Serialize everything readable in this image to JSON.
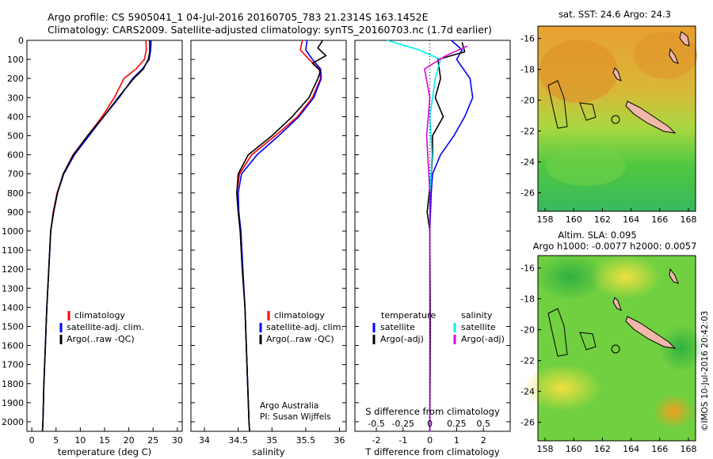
{
  "header": {
    "line1": "Argo profile: CS 5905041_1 04-Jul-2016 20160705_783 21.2314S 163.1452E",
    "line2": "Climatology: CARS2009. Satellite-adjusted climatology: synTS_20160703.nc (1.7d earlier)"
  },
  "colors": {
    "climatology": "#ff0000",
    "satellite": "#0000ff",
    "argo": "#000000",
    "sal_sat": "#00eeee",
    "sal_argo": "#dd00dd",
    "land": "#f0b8a8"
  },
  "chart_data": [
    {
      "type": "line",
      "id": "temperature",
      "xlabel": "temperature (deg C)",
      "xlim": [
        -1,
        31
      ],
      "ylim": [
        2050,
        0
      ],
      "xticks": [
        "0",
        "5",
        "10",
        "15",
        "20",
        "25",
        "30"
      ],
      "yticks": [
        "0",
        "100",
        "200",
        "300",
        "400",
        "500",
        "600",
        "700",
        "800",
        "900",
        "1000",
        "1100",
        "1200",
        "1300",
        "1400",
        "1500",
        "1600",
        "1700",
        "1800",
        "1900",
        "2000"
      ],
      "legend": [
        "climatology",
        "satellite-adj. clim.",
        "Argo(..raw -QC)"
      ],
      "series": [
        {
          "name": "climatology",
          "pts": [
            [
              23.5,
              0
            ],
            [
              23.6,
              50
            ],
            [
              23.2,
              100
            ],
            [
              21.5,
              150
            ],
            [
              19.0,
              200
            ],
            [
              17.0,
              300
            ],
            [
              14.5,
              400
            ],
            [
              11.5,
              500
            ],
            [
              8.5,
              600
            ],
            [
              6.5,
              700
            ],
            [
              5.2,
              800
            ],
            [
              4.4,
              900
            ],
            [
              3.9,
              1000
            ],
            [
              3.5,
              1200
            ],
            [
              3.1,
              1400
            ],
            [
              2.8,
              1600
            ],
            [
              2.5,
              1800
            ],
            [
              2.3,
              2000
            ],
            [
              2.2,
              2050
            ]
          ]
        },
        {
          "name": "satellite",
          "pts": [
            [
              24.6,
              0
            ],
            [
              24.5,
              50
            ],
            [
              24.2,
              100
            ],
            [
              22.8,
              150
            ],
            [
              20.8,
              200
            ],
            [
              18.0,
              300
            ],
            [
              14.8,
              400
            ],
            [
              11.8,
              500
            ],
            [
              8.8,
              600
            ],
            [
              6.6,
              700
            ],
            [
              5.3,
              800
            ],
            [
              4.5,
              900
            ],
            [
              3.9,
              1000
            ],
            [
              3.5,
              1200
            ],
            [
              3.1,
              1400
            ],
            [
              2.8,
              1600
            ],
            [
              2.5,
              1800
            ],
            [
              2.3,
              2000
            ],
            [
              2.2,
              2050
            ]
          ]
        },
        {
          "name": "argo",
          "pts": [
            [
              24.3,
              0
            ],
            [
              24.3,
              60
            ],
            [
              24.0,
              100
            ],
            [
              23.0,
              150
            ],
            [
              21.0,
              200
            ],
            [
              17.8,
              300
            ],
            [
              14.8,
              400
            ],
            [
              11.5,
              500
            ],
            [
              8.6,
              600
            ],
            [
              6.5,
              700
            ],
            [
              5.3,
              800
            ],
            [
              4.5,
              900
            ],
            [
              3.9,
              1000
            ],
            [
              3.5,
              1200
            ],
            [
              3.1,
              1400
            ],
            [
              2.8,
              1600
            ],
            [
              2.5,
              1800
            ],
            [
              2.3,
              2000
            ],
            [
              2.2,
              2050
            ]
          ]
        }
      ]
    },
    {
      "type": "line",
      "id": "salinity",
      "xlabel": "salinity",
      "xlim": [
        33.8,
        36.1
      ],
      "ylim": [
        2050,
        0
      ],
      "xticks": [
        "34",
        "34.5",
        "35",
        "35.5",
        "36"
      ],
      "legend": [
        "climatology",
        "satellite-adj. clim.",
        "Argo(..raw -QC)"
      ],
      "annotation": [
        "Argo Australia",
        "PI: Susan Wijffels"
      ],
      "series": [
        {
          "name": "climatology",
          "pts": [
            [
              35.45,
              0
            ],
            [
              35.42,
              50
            ],
            [
              35.55,
              100
            ],
            [
              35.7,
              150
            ],
            [
              35.72,
              200
            ],
            [
              35.6,
              300
            ],
            [
              35.38,
              400
            ],
            [
              35.05,
              500
            ],
            [
              34.7,
              600
            ],
            [
              34.52,
              700
            ],
            [
              34.48,
              800
            ],
            [
              34.5,
              900
            ],
            [
              34.53,
              1000
            ],
            [
              34.56,
              1200
            ],
            [
              34.6,
              1400
            ],
            [
              34.62,
              1600
            ],
            [
              34.64,
              1800
            ],
            [
              34.66,
              2000
            ],
            [
              34.67,
              2050
            ]
          ]
        },
        {
          "name": "satellite",
          "pts": [
            [
              35.52,
              0
            ],
            [
              35.5,
              50
            ],
            [
              35.6,
              100
            ],
            [
              35.72,
              150
            ],
            [
              35.73,
              200
            ],
            [
              35.62,
              300
            ],
            [
              35.4,
              400
            ],
            [
              35.1,
              500
            ],
            [
              34.78,
              600
            ],
            [
              34.55,
              700
            ],
            [
              34.5,
              800
            ],
            [
              34.51,
              900
            ],
            [
              34.54,
              1000
            ],
            [
              34.57,
              1200
            ],
            [
              34.6,
              1400
            ],
            [
              34.62,
              1600
            ],
            [
              34.64,
              1800
            ],
            [
              34.66,
              2000
            ],
            [
              34.67,
              2050
            ]
          ]
        },
        {
          "name": "argo",
          "pts": [
            [
              35.75,
              0
            ],
            [
              35.68,
              40
            ],
            [
              35.8,
              80
            ],
            [
              35.6,
              120
            ],
            [
              35.72,
              160
            ],
            [
              35.68,
              200
            ],
            [
              35.55,
              300
            ],
            [
              35.3,
              400
            ],
            [
              35.0,
              500
            ],
            [
              34.65,
              600
            ],
            [
              34.5,
              700
            ],
            [
              34.48,
              800
            ],
            [
              34.5,
              900
            ],
            [
              34.53,
              1000
            ],
            [
              34.56,
              1200
            ],
            [
              34.6,
              1400
            ],
            [
              34.62,
              1600
            ],
            [
              34.64,
              1800
            ],
            [
              34.66,
              2000
            ],
            [
              34.67,
              2050
            ]
          ]
        }
      ]
    },
    {
      "type": "line",
      "id": "difference",
      "xlabel": "T difference from climatology",
      "xlabel2": "S difference from climatology",
      "xlim": [
        -2.8,
        3.0
      ],
      "ylim": [
        2050,
        0
      ],
      "xticks": [
        "-2",
        "-1",
        "0",
        "1",
        "2"
      ],
      "sticks": [
        "-0.5",
        "-0.25",
        "0",
        "0.25",
        "0.5"
      ],
      "legend_title_t": "temperature",
      "legend_title_s": "salinity",
      "legend_t": [
        "satellite",
        "Argo(-adj)"
      ],
      "legend_s": [
        "satellite",
        "Argo(-adj)"
      ],
      "series": [
        {
          "name": "T satellite",
          "pts": [
            [
              0.8,
              0
            ],
            [
              1.2,
              50
            ],
            [
              1.0,
              100
            ],
            [
              1.5,
              200
            ],
            [
              1.6,
              300
            ],
            [
              1.3,
              400
            ],
            [
              0.9,
              500
            ],
            [
              0.4,
              600
            ],
            [
              0.1,
              700
            ],
            [
              0.05,
              800
            ],
            [
              0.0,
              1000
            ],
            [
              0.0,
              1500
            ],
            [
              0.0,
              2050
            ]
          ]
        },
        {
          "name": "T argo",
          "pts": [
            [
              1.2,
              10
            ],
            [
              1.3,
              60
            ],
            [
              0.3,
              100
            ],
            [
              0.4,
              200
            ],
            [
              0.2,
              300
            ],
            [
              0.5,
              400
            ],
            [
              0.1,
              500
            ],
            [
              0.1,
              600
            ],
            [
              0.05,
              700
            ],
            [
              -0.1,
              900
            ],
            [
              0.0,
              1000
            ],
            [
              0.02,
              1500
            ],
            [
              0.0,
              2050
            ]
          ]
        },
        {
          "name": "S satellite",
          "pts": [
            [
              -0.4,
              0
            ],
            [
              -0.1,
              50
            ],
            [
              0.1,
              100
            ],
            [
              0.05,
              200
            ],
            [
              0.0,
              400
            ],
            [
              0.02,
              600
            ],
            [
              0.0,
              800
            ],
            [
              0.0,
              2050
            ]
          ]
        },
        {
          "name": "S argo",
          "pts": [
            [
              0.35,
              30
            ],
            [
              0.15,
              80
            ],
            [
              -0.05,
              150
            ],
            [
              0.0,
              300
            ],
            [
              -0.03,
              500
            ],
            [
              0.0,
              800
            ],
            [
              0.0,
              1000
            ],
            [
              0.0,
              2050
            ]
          ]
        }
      ]
    },
    {
      "type": "heatmap",
      "id": "sst_map",
      "title": "sat. SST: 24.6 Argo: 24.3",
      "xlim": [
        157.5,
        168.5
      ],
      "ylim": [
        -27.2,
        -15.2
      ],
      "xticks": [
        "158",
        "160",
        "162",
        "164",
        "166",
        "168"
      ],
      "yticks": [
        "-16",
        "-18",
        "-20",
        "-22",
        "-24",
        "-26"
      ],
      "float_pos": [
        163.1452,
        -21.2314
      ]
    },
    {
      "type": "heatmap",
      "id": "sla_map",
      "title": "Altim. SLA: 0.095",
      "title2": "Argo h1000: -0.0077 h2000: 0.0057",
      "xlim": [
        157.5,
        168.5
      ],
      "ylim": [
        -27.2,
        -15.2
      ],
      "xticks": [
        "158",
        "160",
        "162",
        "164",
        "166",
        "168"
      ],
      "yticks": [
        "-16",
        "-18",
        "-20",
        "-22",
        "-24",
        "-26"
      ],
      "float_pos": [
        163.1452,
        -21.2314
      ]
    }
  ],
  "credit": "©IMOS 10-Jul-2016 20:42:03"
}
